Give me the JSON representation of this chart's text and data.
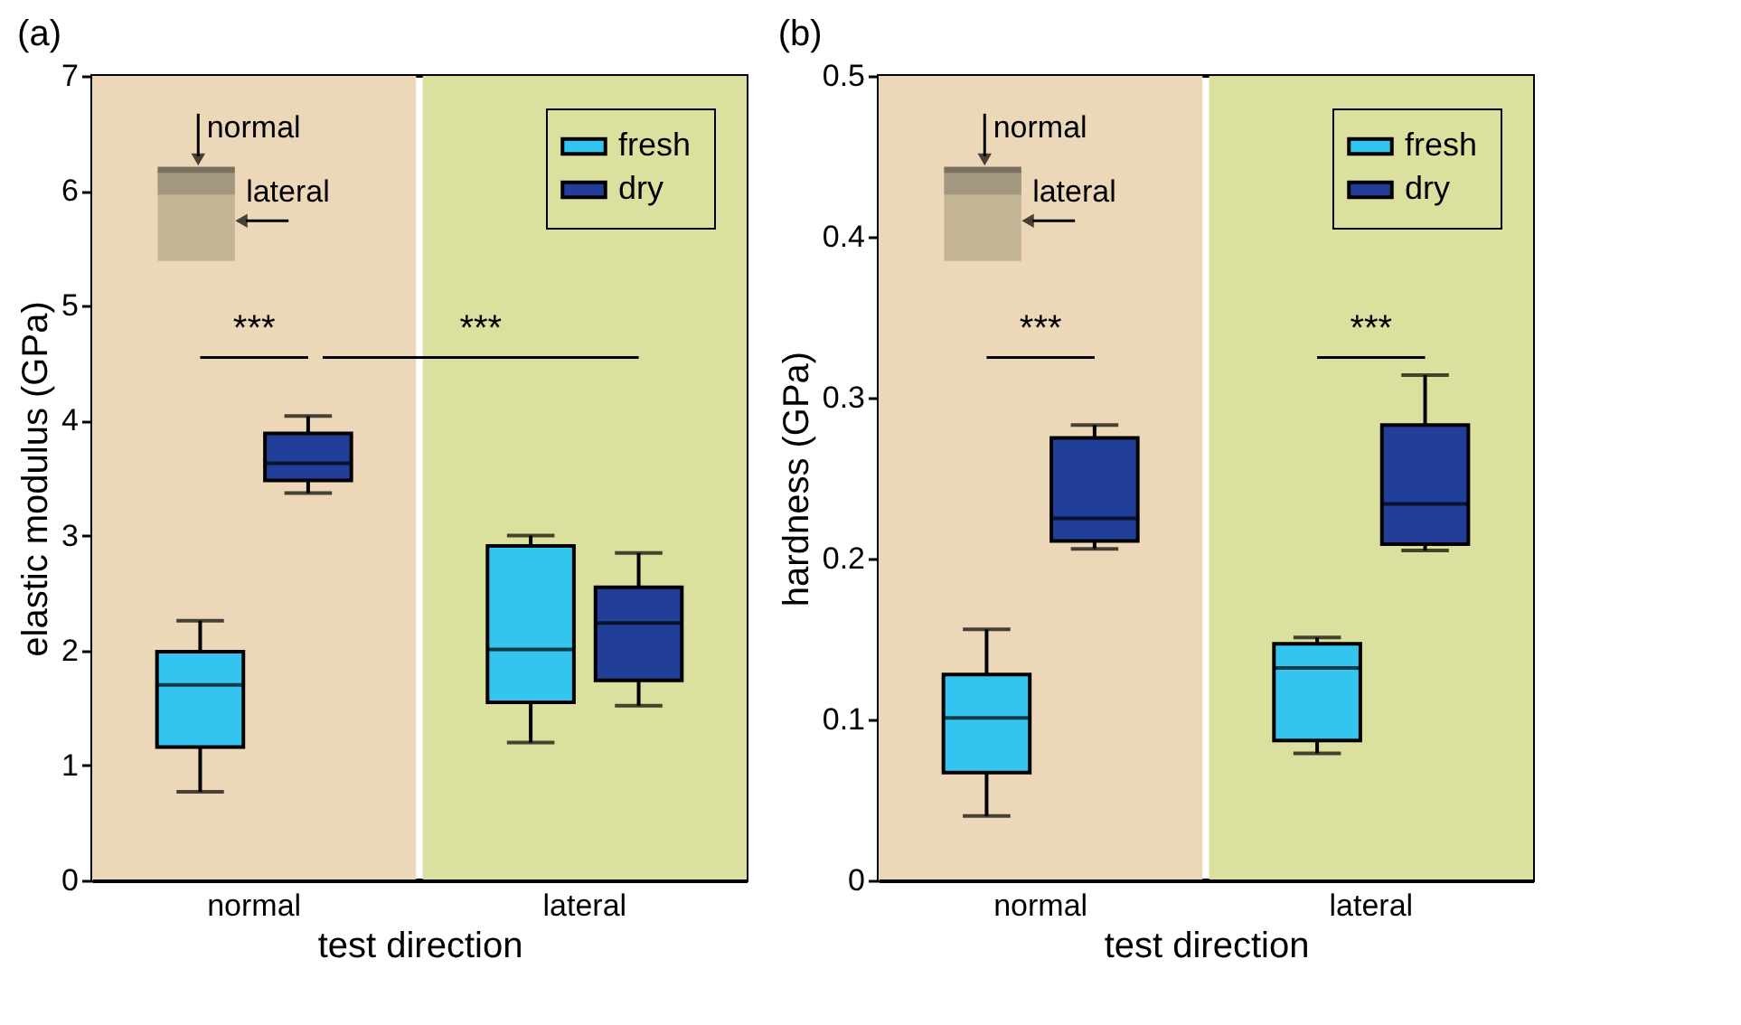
{
  "chart_data": [
    {
      "type": "box",
      "title": "(a)",
      "xlabel": "test direction",
      "ylabel": "elastic modulus (GPa)",
      "categories": [
        "normal",
        "lateral"
      ],
      "ylim": [
        0,
        7
      ],
      "yticks": [
        0,
        1,
        2,
        3,
        4,
        5,
        6,
        7
      ],
      "grid": false,
      "legend": "top right",
      "series": [
        {
          "name": "fresh",
          "color": "#33c5f0",
          "boxes": [
            {
              "low": 0.77,
              "q1": 1.16,
              "median": 1.7,
              "q3": 1.99,
              "high": 2.26
            },
            {
              "low": 1.2,
              "q1": 1.55,
              "median": 2.01,
              "q3": 2.91,
              "high": 3.0
            }
          ]
        },
        {
          "name": "dry",
          "color": "#213f99",
          "boxes": [
            {
              "low": 3.37,
              "q1": 3.48,
              "median": 3.63,
              "q3": 3.89,
              "high": 4.04
            },
            {
              "low": 1.52,
              "q1": 1.74,
              "median": 2.24,
              "q3": 2.55,
              "high": 2.85
            }
          ]
        }
      ],
      "bands": [
        {
          "axis": "x",
          "from": "normal",
          "to": "normal",
          "color": "#ecd8b8"
        },
        {
          "axis": "x",
          "from": "lateral",
          "to": "lateral",
          "color": "#dbe09e"
        }
      ],
      "annotations": [
        "***",
        "***",
        "normal",
        "lateral"
      ]
    },
    {
      "type": "box",
      "title": "(b)",
      "xlabel": "test direction",
      "ylabel": "hardness (GPa)",
      "categories": [
        "normal",
        "lateral"
      ],
      "ylim": [
        0,
        0.5
      ],
      "yticks": [
        0,
        0.1,
        0.2,
        0.3,
        0.4,
        0.5
      ],
      "grid": false,
      "legend": "top right",
      "series": [
        {
          "name": "fresh",
          "color": "#33c5f0",
          "boxes": [
            {
              "low": 0.04,
              "q1": 0.067,
              "median": 0.101,
              "q3": 0.128,
              "high": 0.156
            },
            {
              "low": 0.079,
              "q1": 0.087,
              "median": 0.132,
              "q3": 0.147,
              "high": 0.151
            }
          ]
        },
        {
          "name": "dry",
          "color": "#213f99",
          "boxes": [
            {
              "low": 0.206,
              "q1": 0.211,
              "median": 0.225,
              "q3": 0.275,
              "high": 0.283
            },
            {
              "low": 0.205,
              "q1": 0.209,
              "median": 0.234,
              "q3": 0.283,
              "high": 0.314
            }
          ]
        }
      ],
      "bands": [
        {
          "axis": "x",
          "from": "normal",
          "to": "normal",
          "color": "#ecd8b8"
        },
        {
          "axis": "x",
          "from": "lateral",
          "to": "lateral",
          "color": "#dbe09e"
        }
      ],
      "annotations": [
        "***",
        "***",
        "normal",
        "lateral"
      ]
    }
  ]
}
